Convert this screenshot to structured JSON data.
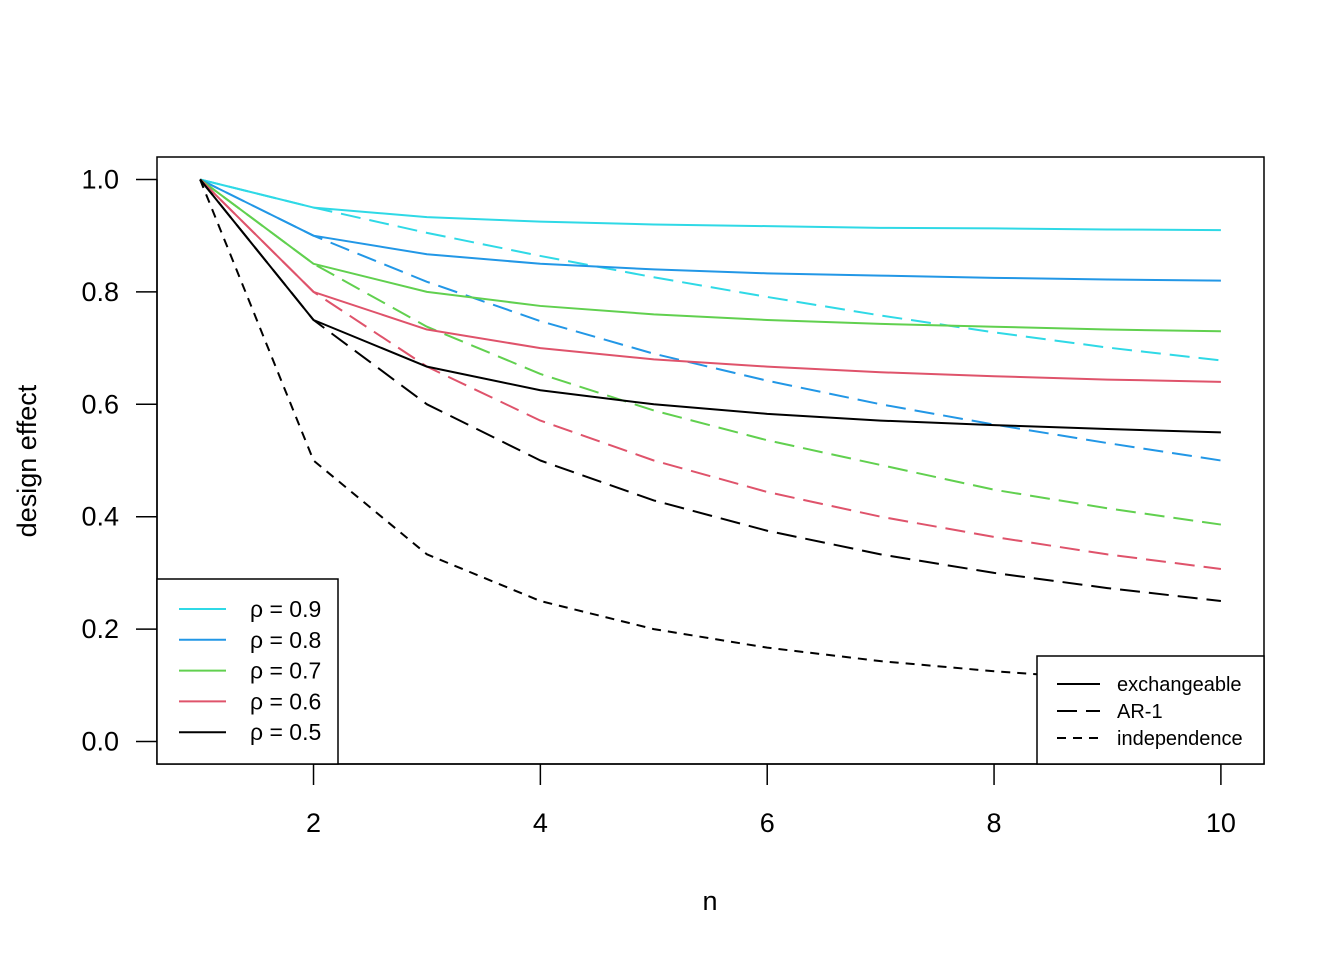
{
  "chart_data": {
    "type": "line",
    "title": "",
    "xlabel": "n",
    "ylabel": "design effect",
    "xlim": [
      0.62,
      10.38
    ],
    "ylim": [
      -0.04,
      1.04
    ],
    "xticks": [
      2,
      4,
      6,
      8,
      10
    ],
    "xtick_labels": [
      "2",
      "4",
      "6",
      "8",
      "10"
    ],
    "yticks": [
      0.0,
      0.2,
      0.4,
      0.6,
      0.8,
      1.0
    ],
    "ytick_labels": [
      "0.0",
      "0.2",
      "0.4",
      "0.6",
      "0.8",
      "1.0"
    ],
    "grid": false,
    "x": [
      1,
      2,
      3,
      4,
      5,
      6,
      7,
      8,
      9,
      10
    ],
    "colors": {
      "rho_0.9": "#2fd9e6",
      "rho_0.8": "#2297e6",
      "rho_0.7": "#61d04f",
      "rho_0.6": "#df536b",
      "rho_0.5": "#000000"
    },
    "series": [
      {
        "group": "rho_0.9",
        "structure": "exchangeable",
        "values": [
          1.0,
          0.95,
          0.933,
          0.925,
          0.92,
          0.917,
          0.914,
          0.913,
          0.911,
          0.91
        ]
      },
      {
        "group": "rho_0.9",
        "structure": "AR-1",
        "values": [
          1.0,
          0.95,
          0.905,
          0.864,
          0.826,
          0.791,
          0.758,
          0.728,
          0.701,
          0.678
        ]
      },
      {
        "group": "rho_0.8",
        "structure": "exchangeable",
        "values": [
          1.0,
          0.9,
          0.867,
          0.85,
          0.84,
          0.833,
          0.829,
          0.825,
          0.822,
          0.82
        ]
      },
      {
        "group": "rho_0.8",
        "structure": "AR-1",
        "values": [
          1.0,
          0.9,
          0.818,
          0.748,
          0.69,
          0.642,
          0.6,
          0.564,
          0.531,
          0.5
        ]
      },
      {
        "group": "rho_0.7",
        "structure": "exchangeable",
        "values": [
          1.0,
          0.85,
          0.8,
          0.775,
          0.76,
          0.75,
          0.743,
          0.738,
          0.733,
          0.73
        ]
      },
      {
        "group": "rho_0.7",
        "structure": "AR-1",
        "values": [
          1.0,
          0.85,
          0.738,
          0.654,
          0.589,
          0.536,
          0.492,
          0.448,
          0.415,
          0.386
        ]
      },
      {
        "group": "rho_0.6",
        "structure": "exchangeable",
        "values": [
          1.0,
          0.8,
          0.733,
          0.7,
          0.68,
          0.667,
          0.657,
          0.65,
          0.644,
          0.64
        ]
      },
      {
        "group": "rho_0.6",
        "structure": "AR-1",
        "values": [
          1.0,
          0.8,
          0.667,
          0.571,
          0.5,
          0.444,
          0.4,
          0.364,
          0.333,
          0.307
        ]
      },
      {
        "group": "rho_0.5",
        "structure": "exchangeable",
        "values": [
          1.0,
          0.75,
          0.667,
          0.625,
          0.6,
          0.583,
          0.571,
          0.563,
          0.556,
          0.55
        ]
      },
      {
        "group": "rho_0.5",
        "structure": "AR-1",
        "values": [
          1.0,
          0.75,
          0.6,
          0.5,
          0.429,
          0.375,
          0.333,
          0.3,
          0.273,
          0.25
        ]
      },
      {
        "group": "rho_0.5",
        "structure": "independence",
        "values": [
          1.0,
          0.5,
          0.333,
          0.25,
          0.2,
          0.167,
          0.143,
          0.125,
          0.111,
          0.1
        ]
      }
    ],
    "legend_rho": {
      "placement": "bottom-left",
      "entries": [
        {
          "label": "ρ = 0.9",
          "group": "rho_0.9"
        },
        {
          "label": "ρ = 0.8",
          "group": "rho_0.8"
        },
        {
          "label": "ρ = 0.7",
          "group": "rho_0.7"
        },
        {
          "label": "ρ = 0.6",
          "group": "rho_0.6"
        },
        {
          "label": "ρ = 0.5",
          "group": "rho_0.5"
        }
      ]
    },
    "legend_structure": {
      "placement": "bottom-right",
      "entries": [
        {
          "label": "exchangeable",
          "structure": "exchangeable"
        },
        {
          "label": "AR-1",
          "structure": "AR-1"
        },
        {
          "label": "independence",
          "structure": "independence"
        }
      ]
    }
  }
}
